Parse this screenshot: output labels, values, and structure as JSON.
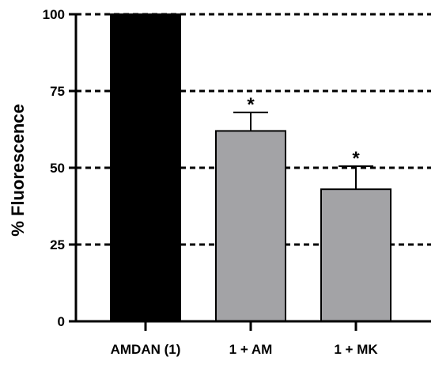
{
  "chart_data": {
    "type": "bar",
    "title": "",
    "xlabel": "",
    "ylabel": "% Fluorescence",
    "ylim": [
      0,
      100
    ],
    "yticks": [
      0,
      25,
      50,
      75,
      100
    ],
    "grid": "dashed horizontal at y ticks",
    "categories": [
      "AMDAN (1)",
      "1 + AM",
      "1 + MK"
    ],
    "values": [
      100,
      62,
      43
    ],
    "errors": [
      0,
      6,
      7.5
    ],
    "annotations": [
      "",
      "*",
      "*"
    ],
    "bar_colors": [
      "#000000",
      "#a3a3a6",
      "#a3a3a6"
    ]
  }
}
